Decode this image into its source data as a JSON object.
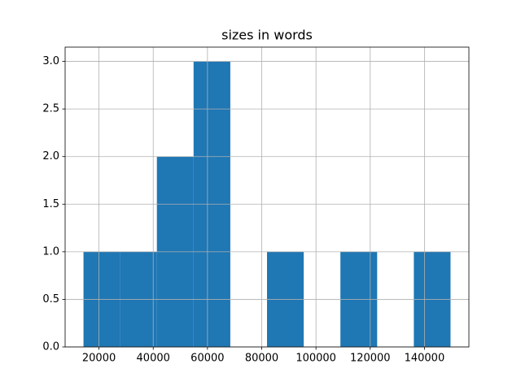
{
  "chart_data": {
    "type": "histogram",
    "title": "sizes in words",
    "bins": [
      14290,
      27820,
      41350,
      54880,
      68420,
      81950,
      95480,
      109010,
      122550,
      136080,
      149610
    ],
    "values": [
      1,
      1,
      2,
      3,
      0,
      1,
      0,
      1,
      0,
      1
    ],
    "color": "#1f77b4",
    "xlim": [
      7520,
      156380
    ],
    "xticks": [
      20000,
      40000,
      60000,
      80000,
      100000,
      120000,
      140000
    ],
    "ylim": [
      0,
      3.15
    ],
    "yticks": [
      {
        "value": 0,
        "label": "0.0"
      },
      {
        "value": 0.5,
        "label": "0.5"
      },
      {
        "value": 1,
        "label": "1.0"
      },
      {
        "value": 1.5,
        "label": "1.5"
      },
      {
        "value": 2,
        "label": "2.0"
      },
      {
        "value": 2.5,
        "label": "2.5"
      },
      {
        "value": 3,
        "label": "3.0"
      }
    ],
    "grid": true
  }
}
